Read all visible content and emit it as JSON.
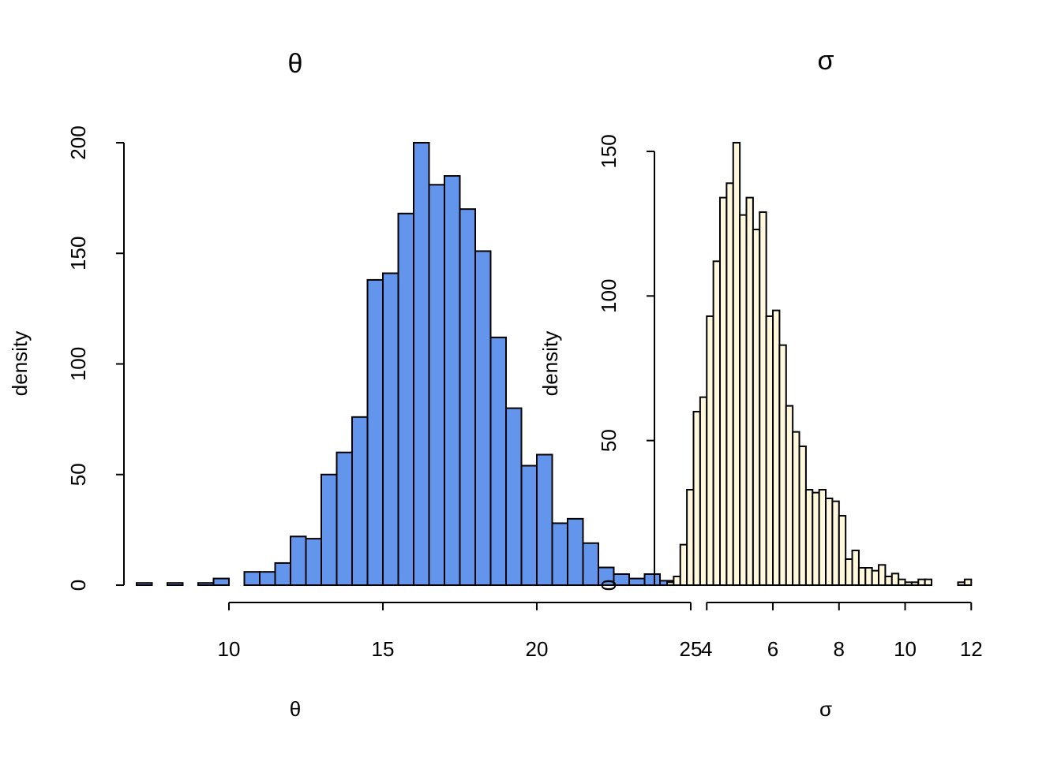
{
  "colors": {
    "theta_fill": "#6495ED",
    "sigma_fill": "#FFF8DC",
    "bar_stroke": "#000000",
    "background": "#FFFFFF"
  },
  "chart_data": [
    {
      "type": "bar",
      "histogram": true,
      "title": "θ",
      "xlabel": "θ",
      "ylabel": "density",
      "fill": "#6495ED",
      "bin_width": 0.5,
      "bins_start": 7.0,
      "counts": [
        1,
        0,
        1,
        0,
        1,
        3,
        0,
        6,
        6,
        10,
        22,
        21,
        50,
        60,
        76,
        138,
        141,
        168,
        200,
        181,
        185,
        170,
        151,
        112,
        80,
        54,
        59,
        28,
        30,
        19,
        8,
        5,
        3,
        5,
        2,
        1,
        1,
        0,
        1,
        0,
        1
      ],
      "xlim": [
        7,
        27.5
      ],
      "ylim": [
        0,
        200
      ],
      "x_ticks": [
        10,
        15,
        20,
        25
      ],
      "x_tick_labels": [
        "10",
        "15",
        "20",
        "25"
      ],
      "y_ticks": [
        0,
        50,
        100,
        150,
        200
      ],
      "y_tick_labels": [
        "0",
        "50",
        "100",
        "150",
        "200"
      ]
    },
    {
      "type": "bar",
      "histogram": true,
      "title": "σ",
      "xlabel": "σ",
      "ylabel": "density",
      "fill": "#FFF8DC",
      "bin_width": 0.2,
      "bins_start": 2.8,
      "counts": [
        1,
        3,
        14,
        33,
        60,
        65,
        93,
        112,
        134,
        139,
        153,
        128,
        134,
        123,
        129,
        93,
        95,
        83,
        62,
        53,
        48,
        33,
        32,
        33,
        30,
        29,
        24,
        9,
        12,
        6,
        6,
        5,
        7,
        3,
        4,
        2,
        1,
        1,
        2,
        2,
        0,
        0,
        0,
        0,
        1,
        2
      ],
      "xlim": [
        2.8,
        12.0
      ],
      "ylim": [
        0,
        150
      ],
      "x_ticks": [
        4,
        6,
        8,
        10,
        12
      ],
      "x_tick_labels": [
        "4",
        "6",
        "8",
        "10",
        "12"
      ],
      "y_ticks": [
        0,
        50,
        100,
        150
      ],
      "y_tick_labels": [
        "0",
        "50",
        "100",
        "150"
      ]
    }
  ]
}
